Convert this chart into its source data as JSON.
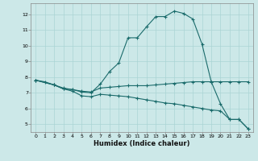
{
  "xlabel": "Humidex (Indice chaleur)",
  "background_color": "#cce8e8",
  "line_color": "#1a6b6b",
  "xlim": [
    -0.5,
    23.5
  ],
  "ylim": [
    4.5,
    12.7
  ],
  "xticks": [
    0,
    1,
    2,
    3,
    4,
    5,
    6,
    7,
    8,
    9,
    10,
    11,
    12,
    13,
    14,
    15,
    16,
    17,
    18,
    19,
    20,
    21,
    22,
    23
  ],
  "yticks": [
    5,
    6,
    7,
    8,
    9,
    10,
    11,
    12
  ],
  "series": [
    {
      "x": [
        0,
        1,
        2,
        3,
        4,
        5,
        6,
        7,
        8,
        9,
        10,
        11,
        12,
        13,
        14,
        15,
        16,
        17,
        18,
        19,
        20,
        21,
        22,
        23
      ],
      "y": [
        7.8,
        7.7,
        7.5,
        7.25,
        7.2,
        7.05,
        7.0,
        7.55,
        8.35,
        8.9,
        10.5,
        10.5,
        11.2,
        11.85,
        11.85,
        12.2,
        12.05,
        11.7,
        10.1,
        7.7,
        6.3,
        5.3,
        5.3,
        4.7
      ]
    },
    {
      "x": [
        0,
        2,
        3,
        4,
        5,
        6,
        7,
        8,
        9,
        10,
        11,
        12,
        13,
        14,
        15,
        16,
        17,
        18,
        19,
        20,
        21,
        22,
        23
      ],
      "y": [
        7.8,
        7.5,
        7.3,
        7.2,
        7.1,
        7.05,
        7.3,
        7.35,
        7.4,
        7.45,
        7.45,
        7.45,
        7.5,
        7.55,
        7.6,
        7.65,
        7.7,
        7.7,
        7.7,
        7.7,
        7.7,
        7.7,
        7.7
      ]
    },
    {
      "x": [
        0,
        2,
        3,
        4,
        5,
        6,
        7,
        8,
        9,
        10,
        11,
        12,
        13,
        14,
        15,
        16,
        17,
        18,
        19,
        20,
        21,
        22,
        23
      ],
      "y": [
        7.8,
        7.5,
        7.25,
        7.1,
        6.8,
        6.75,
        6.9,
        6.85,
        6.8,
        6.75,
        6.65,
        6.55,
        6.45,
        6.35,
        6.3,
        6.2,
        6.1,
        6.0,
        5.9,
        5.85,
        5.3,
        5.3,
        4.7
      ]
    }
  ]
}
